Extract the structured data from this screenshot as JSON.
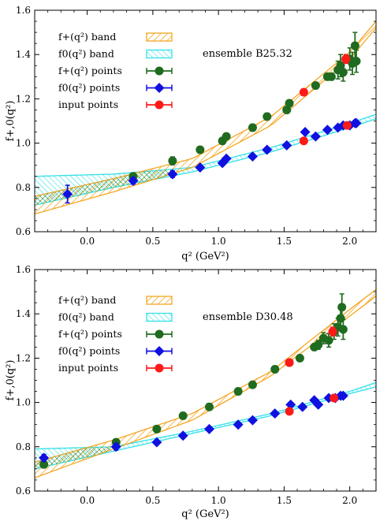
{
  "colors": {
    "fplus_band": "#f5a623",
    "f0_band": "#33e0e8",
    "fplus_points": "#1f6b1f",
    "f0_points": "#1010e0",
    "input_points": "#ff1a1a",
    "overlap_hatch": "#1f8a3a"
  },
  "chart_data": [
    {
      "type": "scatter",
      "panel": "top",
      "ensemble_label": "ensemble B25.32",
      "xlabel": "q² (GeV²)",
      "ylabel": "f+,0(q²)",
      "xlim": [
        -0.4,
        2.2
      ],
      "ylim": [
        0.6,
        1.6
      ],
      "x_ticks": [
        0.0,
        0.5,
        1.0,
        1.5,
        2.0
      ],
      "y_ticks": [
        0.6,
        0.8,
        1.0,
        1.2,
        1.4,
        1.6
      ],
      "x_tick_labels": [
        "0.0",
        "0.5",
        "1.0",
        "1.5",
        "2.0"
      ],
      "y_tick_labels": [
        "0.6",
        "0.8",
        "1.0",
        "1.2",
        "1.4",
        "1.6"
      ],
      "legend_position": "top-left",
      "legend": [
        {
          "label": "f+(q²) band",
          "kind": "band",
          "series": "fplus_band"
        },
        {
          "label": "f0(q²) band",
          "kind": "band",
          "series": "f0_band"
        },
        {
          "label": "f+(q²) points",
          "kind": "point",
          "series": "fplus_points"
        },
        {
          "label": "f0(q²) points",
          "kind": "point",
          "series": "f0_points"
        },
        {
          "label": "input points",
          "kind": "point",
          "series": "input_points"
        }
      ],
      "bands": {
        "fplus": {
          "x": [
            -0.4,
            0.2,
            0.8,
            1.4,
            2.0,
            2.2
          ],
          "lower": [
            0.68,
            0.78,
            0.89,
            1.08,
            1.38,
            1.52
          ],
          "upper": [
            0.76,
            0.84,
            0.93,
            1.12,
            1.41,
            1.55
          ]
        },
        "f0": {
          "x": [
            -0.4,
            0.2,
            0.8,
            1.4,
            2.0,
            2.2
          ],
          "lower": [
            0.72,
            0.8,
            0.87,
            0.96,
            1.07,
            1.11
          ],
          "upper": [
            0.85,
            0.86,
            0.89,
            0.98,
            1.09,
            1.13
          ]
        }
      },
      "series": [
        {
          "name": "f+(q²) points",
          "x": [
            0.35,
            0.65,
            0.86,
            1.03,
            1.06,
            1.26,
            1.37,
            1.52,
            1.54,
            1.74,
            1.83,
            1.86,
            1.91,
            1.93,
            1.95,
            2.0,
            2.02,
            2.04,
            2.05
          ],
          "y": [
            0.85,
            0.92,
            0.97,
            1.01,
            1.03,
            1.07,
            1.12,
            1.15,
            1.18,
            1.26,
            1.3,
            1.3,
            1.33,
            1.35,
            1.32,
            1.38,
            1.36,
            1.44,
            1.37
          ],
          "yerr": [
            0.015,
            0.018,
            0.015,
            0.015,
            0.015,
            0.015,
            0.015,
            0.015,
            0.015,
            0.015,
            0.015,
            0.015,
            0.04,
            0.05,
            0.04,
            0.05,
            0.05,
            0.06,
            0.05
          ]
        },
        {
          "name": "f0(q²) points",
          "x": [
            -0.15,
            0.35,
            0.65,
            0.86,
            1.03,
            1.06,
            1.26,
            1.37,
            1.52,
            1.66,
            1.74,
            1.83,
            1.91,
            1.95,
            2.0,
            2.04,
            2.05
          ],
          "y": [
            0.77,
            0.83,
            0.86,
            0.89,
            0.91,
            0.93,
            0.94,
            0.97,
            0.99,
            1.05,
            1.03,
            1.06,
            1.07,
            1.08,
            1.08,
            1.09,
            1.09
          ],
          "yerr": [
            0.04,
            0.015,
            0.015,
            0.01,
            0.01,
            0.01,
            0.01,
            0.01,
            0.01,
            0.01,
            0.01,
            0.01,
            0.01,
            0.01,
            0.01,
            0.01,
            0.01
          ]
        },
        {
          "name": "input points",
          "x": [
            1.65,
            1.65,
            1.97,
            1.98
          ],
          "y": [
            1.23,
            1.01,
            1.38,
            1.08
          ],
          "yerr": [
            0.015,
            0.01,
            0.02,
            0.01
          ]
        }
      ]
    },
    {
      "type": "scatter",
      "panel": "bottom",
      "ensemble_label": "ensemble D30.48",
      "xlabel": "q² (GeV²)",
      "ylabel": "f+,0(q²)",
      "xlim": [
        -0.4,
        2.2
      ],
      "ylim": [
        0.6,
        1.6
      ],
      "x_ticks": [
        0.0,
        0.5,
        1.0,
        1.5,
        2.0
      ],
      "y_ticks": [
        0.6,
        0.8,
        1.0,
        1.2,
        1.4,
        1.6
      ],
      "x_tick_labels": [
        "0.0",
        "0.5",
        "1.0",
        "1.5",
        "2.0"
      ],
      "y_tick_labels": [
        "0.6",
        "0.8",
        "1.0",
        "1.2",
        "1.4",
        "1.6"
      ],
      "legend_position": "top-left",
      "legend": [
        {
          "label": "f+(q²) band",
          "kind": "band",
          "series": "fplus_band"
        },
        {
          "label": "f0(q²) band",
          "kind": "band",
          "series": "f0_band"
        },
        {
          "label": "f+(q²) points",
          "kind": "point",
          "series": "fplus_points"
        },
        {
          "label": "f0(q²) points",
          "kind": "point",
          "series": "f0_points"
        },
        {
          "label": "input points",
          "kind": "point",
          "series": "input_points"
        }
      ],
      "bands": {
        "fplus": {
          "x": [
            -0.4,
            0.2,
            0.8,
            1.4,
            2.0,
            2.2
          ],
          "lower": [
            0.66,
            0.79,
            0.92,
            1.12,
            1.39,
            1.48
          ],
          "upper": [
            0.73,
            0.83,
            0.95,
            1.14,
            1.42,
            1.51
          ]
        },
        "f0": {
          "x": [
            -0.4,
            0.2,
            0.8,
            1.4,
            2.0,
            2.2
          ],
          "lower": [
            0.7,
            0.78,
            0.86,
            0.94,
            1.04,
            1.07
          ],
          "upper": [
            0.79,
            0.8,
            0.87,
            0.95,
            1.05,
            1.09
          ]
        }
      },
      "series": [
        {
          "name": "f+(q²) points",
          "x": [
            -0.33,
            0.22,
            0.53,
            0.73,
            0.93,
            1.15,
            1.26,
            1.43,
            1.54,
            1.62,
            1.73,
            1.76,
            1.8,
            1.84,
            1.88,
            1.91,
            1.93,
            1.94,
            1.95
          ],
          "y": [
            0.72,
            0.82,
            0.88,
            0.94,
            0.98,
            1.05,
            1.08,
            1.15,
            1.18,
            1.2,
            1.25,
            1.26,
            1.29,
            1.28,
            1.32,
            1.34,
            1.38,
            1.43,
            1.33
          ],
          "yerr": [
            0.015,
            0.015,
            0.015,
            0.015,
            0.015,
            0.015,
            0.015,
            0.015,
            0.015,
            0.015,
            0.015,
            0.02,
            0.025,
            0.03,
            0.035,
            0.04,
            0.045,
            0.06,
            0.045
          ]
        },
        {
          "name": "f0(q²) points",
          "x": [
            -0.33,
            0.22,
            0.53,
            0.73,
            0.93,
            1.15,
            1.26,
            1.43,
            1.55,
            1.64,
            1.73,
            1.76,
            1.84,
            1.89,
            1.93,
            1.95
          ],
          "y": [
            0.75,
            0.8,
            0.82,
            0.85,
            0.88,
            0.9,
            0.92,
            0.95,
            0.99,
            0.98,
            1.01,
            0.99,
            1.02,
            1.02,
            1.03,
            1.03
          ],
          "yerr": [
            0.015,
            0.015,
            0.01,
            0.01,
            0.01,
            0.01,
            0.01,
            0.01,
            0.01,
            0.01,
            0.01,
            0.01,
            0.01,
            0.01,
            0.01,
            0.01
          ]
        },
        {
          "name": "input points",
          "x": [
            1.54,
            1.54,
            1.87,
            1.88
          ],
          "y": [
            1.18,
            0.96,
            1.32,
            1.02
          ],
          "yerr": [
            0.015,
            0.01,
            0.02,
            0.01
          ]
        }
      ]
    }
  ]
}
